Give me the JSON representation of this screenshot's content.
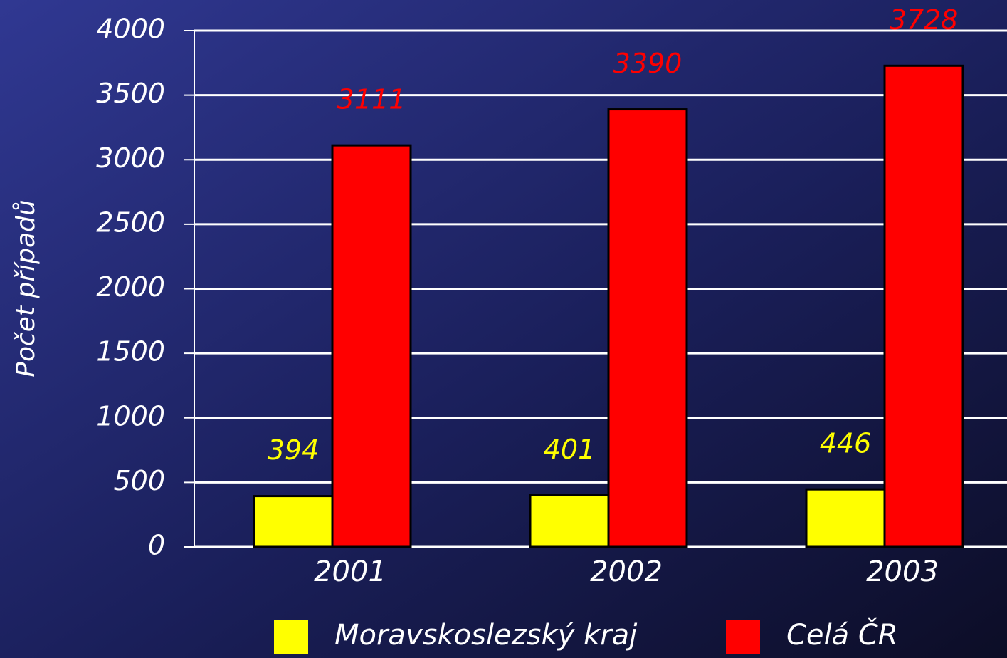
{
  "chart_data": {
    "type": "bar",
    "y_label": "Počet případů",
    "categories": [
      "2001",
      "2002",
      "2003"
    ],
    "series": [
      {
        "name": "Moravskoslezský kraj",
        "color": "#ffff00",
        "values": [
          394,
          401,
          446
        ]
      },
      {
        "name": "Celá ČR",
        "color": "#ff0000",
        "values": [
          3111,
          3390,
          3728
        ]
      }
    ],
    "ylim": [
      0,
      4000
    ],
    "yticks": [
      0,
      500,
      1000,
      1500,
      2000,
      2500,
      3000,
      3500,
      4000
    ],
    "grid": true
  }
}
